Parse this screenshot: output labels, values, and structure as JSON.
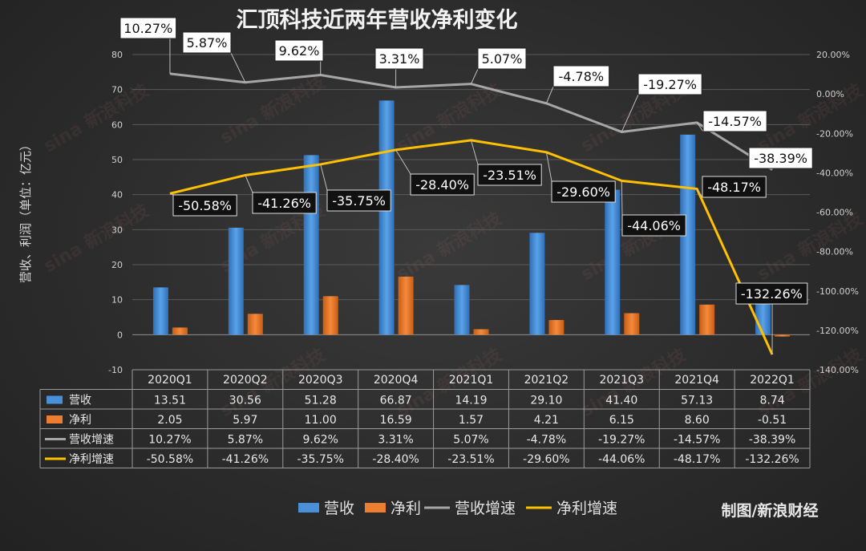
{
  "chart_data": {
    "type": "bar",
    "title": "汇顶科技近两年营收净利变化",
    "ylabel": "营收、利润（单位：亿元）",
    "ylim": [
      -10,
      80
    ],
    "yticks": [
      -10,
      0,
      10,
      20,
      30,
      40,
      50,
      60,
      70,
      80
    ],
    "y2lim": [
      -1.4,
      0.2
    ],
    "y2ticks": [
      "20.00%",
      "0.00%",
      "-20.00%",
      "-40.00%",
      "-60.00%",
      "-80.00%",
      "-100.00%",
      "-120.00%",
      "-140.00%"
    ],
    "categories": [
      "2020Q1",
      "2020Q2",
      "2020Q3",
      "2020Q4",
      "2021Q1",
      "2021Q2",
      "2021Q3",
      "2021Q4",
      "2022Q1"
    ],
    "series": [
      {
        "name": "营收",
        "type": "bar",
        "axis": "left",
        "color": "#4a90d9",
        "values": [
          13.51,
          30.56,
          51.28,
          66.87,
          14.19,
          29.1,
          41.4,
          57.13,
          8.74
        ],
        "labels": [
          "13.51",
          "30.56",
          "51.28",
          "66.87",
          "14.19",
          "29.10",
          "41.40",
          "57.13",
          "8.74"
        ]
      },
      {
        "name": "净利",
        "type": "bar",
        "axis": "left",
        "color": "#ed7d31",
        "values": [
          2.05,
          5.97,
          11.0,
          16.59,
          1.57,
          4.21,
          6.15,
          8.6,
          -0.51
        ],
        "labels": [
          "2.05",
          "5.97",
          "11.00",
          "16.59",
          "1.57",
          "4.21",
          "6.15",
          "8.60",
          "-0.51"
        ]
      },
      {
        "name": "营收增速",
        "type": "line",
        "axis": "right",
        "color": "#a6a6a6",
        "values": [
          10.27,
          5.87,
          9.62,
          3.31,
          5.07,
          -4.78,
          -19.27,
          -14.57,
          -38.39
        ],
        "labels": [
          "10.27%",
          "5.87%",
          "9.62%",
          "3.31%",
          "5.07%",
          "-4.78%",
          "-19.27%",
          "-14.57%",
          "-38.39%"
        ]
      },
      {
        "name": "净利增速",
        "type": "line",
        "axis": "right",
        "color": "#ffc000",
        "values": [
          -50.58,
          -41.26,
          -35.75,
          -28.4,
          -23.51,
          -29.6,
          -44.06,
          -48.17,
          -132.26
        ],
        "labels": [
          "-50.58%",
          "-41.26%",
          "-35.75%",
          "-28.40%",
          "-23.51%",
          "-29.60%",
          "-44.06%",
          "-48.17%",
          "-132.26%"
        ]
      }
    ],
    "legend": [
      "营收",
      "净利",
      "营收增速",
      "净利增速"
    ],
    "legend_position": "bottom",
    "grid": true
  },
  "credit": "制图/新浪财经",
  "watermark": "sina 新浪科技"
}
